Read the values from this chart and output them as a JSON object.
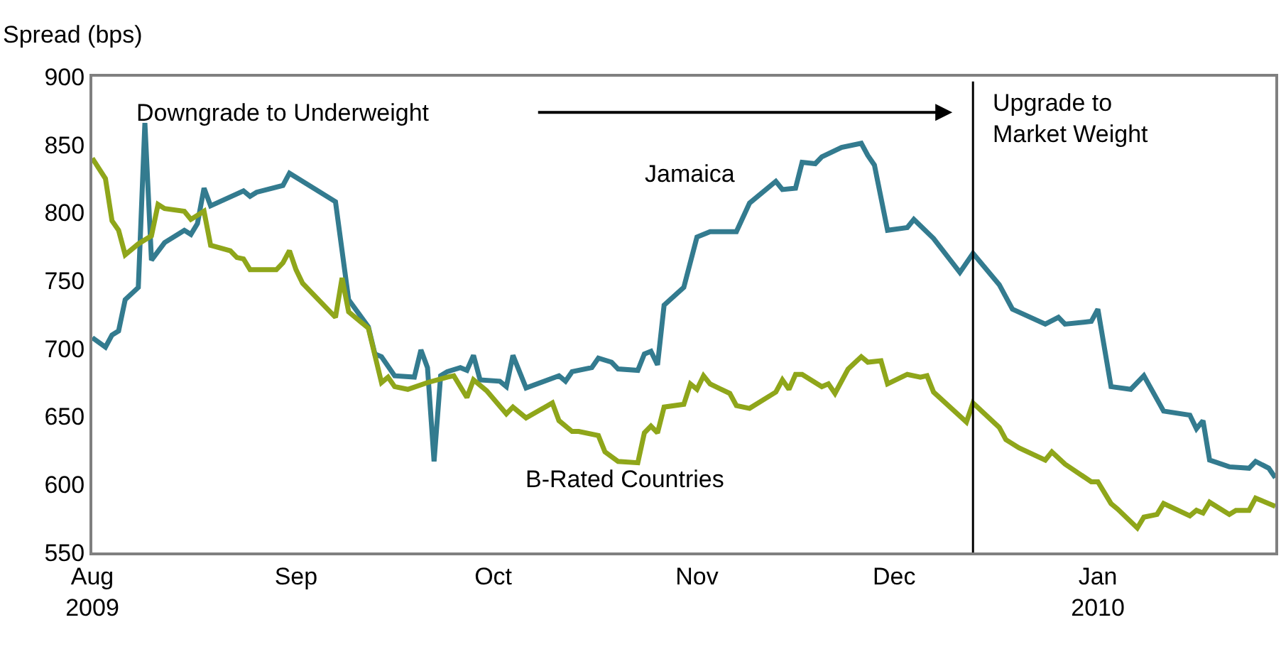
{
  "chart_data": {
    "type": "line",
    "ylabel": "Spread (bps)",
    "xlim": [
      "2009-08-01",
      "2010-01-28"
    ],
    "xticks": [
      {
        "value": "2009-08-01",
        "label": "Aug\n2009"
      },
      {
        "value": "2009-09-01",
        "label": "Sep"
      },
      {
        "value": "2009-10-01",
        "label": "Oct"
      },
      {
        "value": "2009-11-01",
        "label": "Nov"
      },
      {
        "value": "2009-12-01",
        "label": "Dec"
      },
      {
        "value": "2010-01-01",
        "label": "Jan\n2010"
      }
    ],
    "ylim": [
      550,
      900
    ],
    "yticks": [
      550,
      600,
      650,
      700,
      750,
      800,
      850,
      900
    ],
    "legend": false,
    "marker": "none",
    "line_style": "solid",
    "annotations": [
      "Downgrade to Underweight"
    ],
    "ref_lines": [
      {
        "axis": "x",
        "value": "2009-12-13",
        "label": "Upgrade to\nMarket Weight",
        "color": "#000000"
      }
    ],
    "series": [
      {
        "name": "Jamaica",
        "color": "#337b8f",
        "x": [
          "2009-08-01",
          "2009-08-03",
          "2009-08-04",
          "2009-08-05",
          "2009-08-06",
          "2009-08-08",
          "2009-08-09",
          "2009-08-10",
          "2009-08-12",
          "2009-08-15",
          "2009-08-16",
          "2009-08-17",
          "2009-08-18",
          "2009-08-19",
          "2009-08-24",
          "2009-08-25",
          "2009-08-26",
          "2009-08-30",
          "2009-08-31",
          "2009-09-07",
          "2009-09-09",
          "2009-09-12",
          "2009-09-13",
          "2009-09-14",
          "2009-09-16",
          "2009-09-19",
          "2009-09-20",
          "2009-09-21",
          "2009-09-22",
          "2009-09-23",
          "2009-09-24",
          "2009-09-26",
          "2009-09-27",
          "2009-09-28",
          "2009-09-29",
          "2009-10-02",
          "2009-10-03",
          "2009-10-04",
          "2009-10-06",
          "2009-10-11",
          "2009-10-12",
          "2009-10-13",
          "2009-10-16",
          "2009-10-17",
          "2009-10-19",
          "2009-10-20",
          "2009-10-23",
          "2009-10-24",
          "2009-10-25",
          "2009-10-26",
          "2009-10-27",
          "2009-10-30",
          "2009-11-01",
          "2009-11-03",
          "2009-11-07",
          "2009-11-09",
          "2009-11-13",
          "2009-11-14",
          "2009-11-16",
          "2009-11-17",
          "2009-11-19",
          "2009-11-20",
          "2009-11-23",
          "2009-11-26",
          "2009-11-27",
          "2009-11-28",
          "2009-11-30",
          "2009-12-03",
          "2009-12-04",
          "2009-12-07",
          "2009-12-11",
          "2009-12-13",
          "2009-12-17",
          "2009-12-19",
          "2009-12-24",
          "2009-12-26",
          "2009-12-27",
          "2009-12-31",
          "2010-01-01",
          "2010-01-03",
          "2010-01-06",
          "2010-01-08",
          "2010-01-11",
          "2010-01-15",
          "2010-01-16",
          "2010-01-17",
          "2010-01-18",
          "2010-01-21",
          "2010-01-24",
          "2010-01-25",
          "2010-01-27",
          "2010-01-28"
        ],
        "values": [
          708,
          701,
          710,
          713,
          736,
          745,
          866,
          765,
          778,
          787,
          784,
          792,
          818,
          805,
          816,
          812,
          815,
          820,
          829,
          808,
          736,
          716,
          696,
          694,
          680,
          679,
          699,
          686,
          617,
          680,
          683,
          686,
          684,
          695,
          677,
          676,
          672,
          695,
          671,
          680,
          676,
          683,
          686,
          693,
          690,
          685,
          684,
          696,
          698,
          688,
          732,
          745,
          782,
          786,
          786,
          807,
          823,
          817,
          818,
          837,
          836,
          841,
          848,
          851,
          842,
          835,
          787,
          789,
          795,
          781,
          756,
          770,
          747,
          729,
          718,
          723,
          718,
          720,
          729,
          672,
          670,
          680,
          654,
          651,
          641,
          647,
          618,
          613,
          612,
          617,
          612,
          605
        ]
      },
      {
        "name": "B-Rated Countries",
        "color": "#8fa61a",
        "x": [
          "2009-08-01",
          "2009-08-03",
          "2009-08-04",
          "2009-08-05",
          "2009-08-06",
          "2009-08-08",
          "2009-08-10",
          "2009-08-11",
          "2009-08-12",
          "2009-08-15",
          "2009-08-16",
          "2009-08-18",
          "2009-08-19",
          "2009-08-22",
          "2009-08-23",
          "2009-08-24",
          "2009-08-25",
          "2009-08-29",
          "2009-08-30",
          "2009-08-31",
          "2009-09-01",
          "2009-09-02",
          "2009-09-07",
          "2009-09-08",
          "2009-09-09",
          "2009-09-12",
          "2009-09-14",
          "2009-09-15",
          "2009-09-16",
          "2009-09-18",
          "2009-09-21",
          "2009-09-24",
          "2009-09-25",
          "2009-09-27",
          "2009-09-28",
          "2009-09-30",
          "2009-10-03",
          "2009-10-04",
          "2009-10-06",
          "2009-10-10",
          "2009-10-11",
          "2009-10-13",
          "2009-10-14",
          "2009-10-17",
          "2009-10-18",
          "2009-10-20",
          "2009-10-23",
          "2009-10-24",
          "2009-10-25",
          "2009-10-26",
          "2009-10-27",
          "2009-10-30",
          "2009-10-31",
          "2009-11-01",
          "2009-11-02",
          "2009-11-03",
          "2009-11-06",
          "2009-11-07",
          "2009-11-09",
          "2009-11-13",
          "2009-11-14",
          "2009-11-15",
          "2009-11-16",
          "2009-11-17",
          "2009-11-20",
          "2009-11-21",
          "2009-11-22",
          "2009-11-24",
          "2009-11-26",
          "2009-11-27",
          "2009-11-29",
          "2009-11-30",
          "2009-12-03",
          "2009-12-05",
          "2009-12-06",
          "2009-12-07",
          "2009-12-12",
          "2009-12-13",
          "2009-12-17",
          "2009-12-18",
          "2009-12-20",
          "2009-12-24",
          "2009-12-25",
          "2009-12-27",
          "2009-12-31",
          "2010-01-01",
          "2010-01-03",
          "2010-01-04",
          "2010-01-07",
          "2010-01-08",
          "2010-01-10",
          "2010-01-11",
          "2010-01-15",
          "2010-01-16",
          "2010-01-17",
          "2010-01-18",
          "2010-01-21",
          "2010-01-22",
          "2010-01-24",
          "2010-01-25",
          "2010-01-28"
        ],
        "values": [
          840,
          825,
          794,
          787,
          769,
          777,
          783,
          806,
          803,
          801,
          795,
          801,
          776,
          772,
          767,
          766,
          758,
          758,
          763,
          772,
          758,
          748,
          723,
          752,
          727,
          715,
          675,
          679,
          672,
          670,
          675,
          679,
          680,
          664,
          677,
          669,
          652,
          657,
          649,
          660,
          647,
          639,
          639,
          636,
          624,
          617,
          616,
          638,
          643,
          638,
          657,
          659,
          674,
          670,
          680,
          674,
          667,
          658,
          656,
          668,
          677,
          670,
          681,
          681,
          672,
          674,
          667,
          685,
          694,
          690,
          691,
          674,
          681,
          679,
          680,
          668,
          646,
          660,
          642,
          633,
          627,
          618,
          624,
          615,
          602,
          602,
          586,
          582,
          568,
          576,
          578,
          586,
          577,
          581,
          579,
          587,
          578,
          581,
          581,
          590,
          584
        ]
      }
    ]
  }
}
